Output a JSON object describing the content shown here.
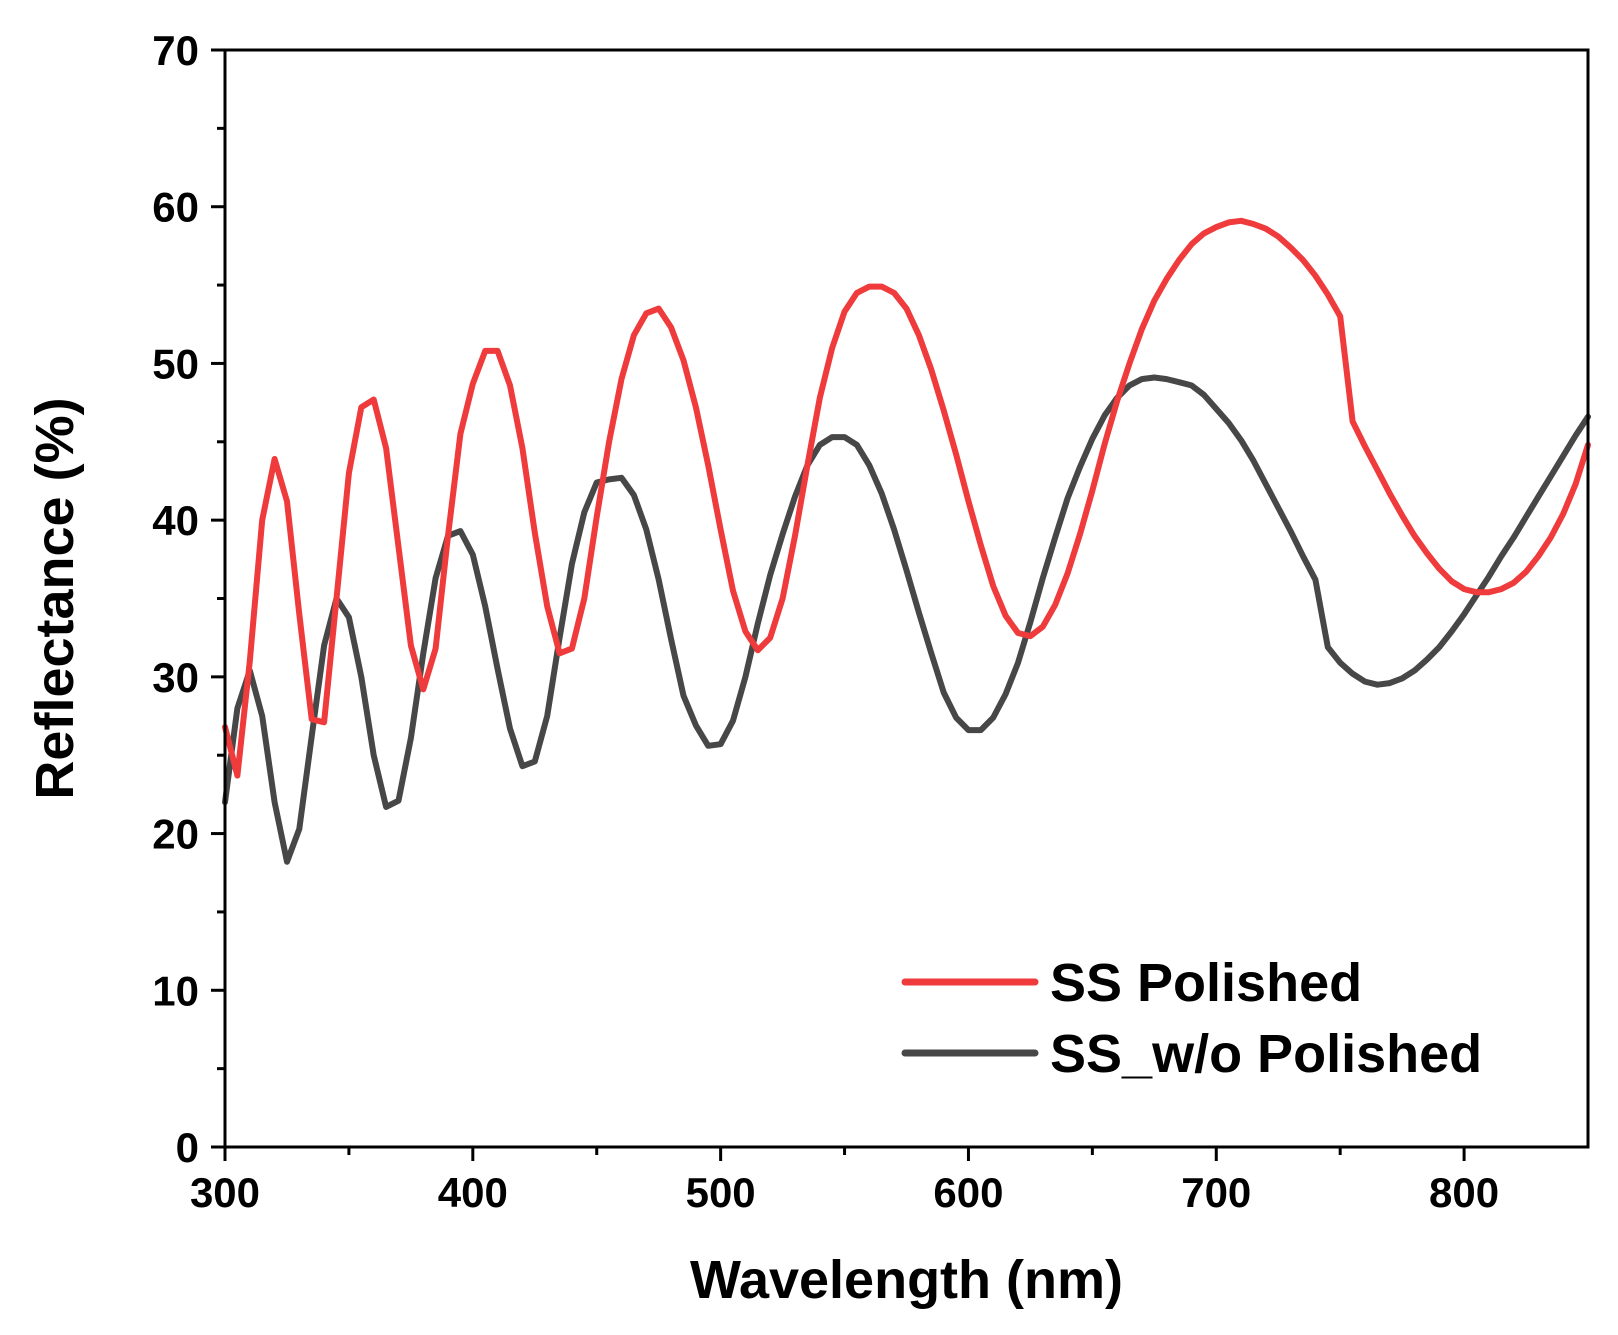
{
  "chart_data": {
    "type": "line",
    "title": "",
    "xlabel": "Wavelength (nm)",
    "ylabel": "Reflectance (%)",
    "xlim": [
      300,
      850
    ],
    "ylim": [
      0,
      70
    ],
    "x_ticks": [
      300,
      400,
      500,
      600,
      700,
      800
    ],
    "x_tick_labels": [
      "300",
      "400",
      "500",
      "600",
      "700",
      "800"
    ],
    "x_minor_ticks": [
      350,
      450,
      550,
      650,
      750
    ],
    "y_ticks": [
      0,
      10,
      20,
      30,
      40,
      50,
      60,
      70
    ],
    "y_tick_labels": [
      "0",
      "10",
      "20",
      "30",
      "40",
      "50",
      "60",
      "70"
    ],
    "y_minor_ticks": [
      5,
      15,
      25,
      35,
      45,
      55,
      65
    ],
    "grid": false,
    "legend_position": "bottom-right",
    "series": [
      {
        "name": "SS Polished",
        "color": "#ef3b3b",
        "x": [
          300,
          305,
          310,
          315,
          320,
          325,
          330,
          335,
          340,
          345,
          350,
          355,
          360,
          365,
          370,
          375,
          380,
          385,
          390,
          395,
          400,
          405,
          410,
          415,
          420,
          425,
          430,
          435,
          440,
          445,
          450,
          455,
          460,
          465,
          470,
          475,
          480,
          485,
          490,
          495,
          500,
          505,
          510,
          515,
          520,
          525,
          530,
          535,
          540,
          545,
          550,
          555,
          560,
          565,
          570,
          575,
          580,
          585,
          590,
          595,
          600,
          605,
          610,
          615,
          620,
          625,
          630,
          635,
          640,
          645,
          650,
          655,
          660,
          665,
          670,
          675,
          680,
          685,
          690,
          695,
          700,
          705,
          710,
          715,
          720,
          725,
          730,
          735,
          740,
          745,
          750,
          755,
          760,
          765,
          770,
          775,
          780,
          785,
          790,
          795,
          800,
          805,
          810,
          815,
          820,
          825,
          830,
          835,
          840,
          845,
          850
        ],
        "values": [
          26.8,
          23.7,
          31.0,
          40.0,
          43.9,
          41.2,
          34.0,
          27.3,
          27.1,
          35.0,
          43.0,
          47.2,
          47.7,
          44.6,
          38.3,
          32.0,
          29.2,
          31.8,
          39.0,
          45.5,
          48.7,
          50.8,
          50.8,
          48.6,
          44.6,
          39.2,
          34.5,
          31.5,
          31.8,
          35.0,
          40.2,
          45.0,
          49.0,
          51.8,
          53.2,
          53.5,
          52.3,
          50.2,
          47.2,
          43.5,
          39.4,
          35.5,
          32.9,
          31.7,
          32.5,
          35.0,
          39.0,
          43.5,
          47.8,
          51.0,
          53.3,
          54.5,
          54.9,
          54.9,
          54.5,
          53.5,
          51.8,
          49.6,
          47.0,
          44.2,
          41.2,
          38.4,
          35.8,
          33.9,
          32.8,
          32.6,
          33.2,
          34.6,
          36.6,
          39.1,
          41.9,
          44.9,
          47.6,
          50.0,
          52.2,
          54.0,
          55.4,
          56.6,
          57.6,
          58.3,
          58.7,
          59.0,
          59.1,
          58.9,
          58.6,
          58.1,
          57.4,
          56.6,
          55.6,
          54.4,
          53.0,
          46.3,
          44.7,
          43.2,
          41.7,
          40.3,
          39.0,
          37.9,
          36.9,
          36.1,
          35.6,
          35.4,
          35.4,
          35.6,
          36.0,
          36.7,
          37.7,
          38.9,
          40.4,
          42.3,
          44.8
        ]
      },
      {
        "name": "SS_w/o Polished",
        "color": "#474747",
        "x": [
          300,
          305,
          310,
          315,
          320,
          325,
          330,
          335,
          340,
          345,
          350,
          355,
          360,
          365,
          370,
          375,
          380,
          385,
          390,
          395,
          400,
          405,
          410,
          415,
          420,
          425,
          430,
          435,
          440,
          445,
          450,
          455,
          460,
          465,
          470,
          475,
          480,
          485,
          490,
          495,
          500,
          505,
          510,
          515,
          520,
          525,
          530,
          535,
          540,
          545,
          550,
          555,
          560,
          565,
          570,
          575,
          580,
          585,
          590,
          595,
          600,
          605,
          610,
          615,
          620,
          625,
          630,
          635,
          640,
          645,
          650,
          655,
          660,
          665,
          670,
          675,
          680,
          685,
          690,
          695,
          700,
          705,
          710,
          715,
          720,
          725,
          730,
          735,
          740,
          745,
          750,
          755,
          760,
          765,
          770,
          775,
          780,
          785,
          790,
          795,
          800,
          805,
          810,
          815,
          820,
          825,
          830,
          835,
          840,
          845,
          850
        ],
        "values": [
          22.0,
          28.0,
          30.4,
          27.5,
          22.0,
          18.2,
          20.3,
          26.2,
          32.0,
          35.0,
          33.8,
          30.0,
          25.0,
          21.7,
          22.1,
          26.1,
          31.5,
          36.3,
          39.0,
          39.3,
          37.8,
          34.5,
          30.5,
          26.7,
          24.3,
          24.6,
          27.5,
          32.5,
          37.2,
          40.5,
          42.4,
          42.6,
          42.7,
          41.6,
          39.4,
          36.2,
          32.4,
          28.8,
          26.9,
          25.6,
          25.7,
          27.2,
          30.0,
          33.4,
          36.5,
          39.1,
          41.5,
          43.5,
          44.8,
          45.3,
          45.3,
          44.8,
          43.5,
          41.7,
          39.4,
          36.8,
          34.1,
          31.5,
          29.0,
          27.4,
          26.6,
          26.6,
          27.4,
          28.9,
          30.9,
          33.5,
          36.3,
          38.9,
          41.4,
          43.4,
          45.2,
          46.7,
          47.8,
          48.6,
          49.0,
          49.1,
          49.0,
          48.8,
          48.6,
          48.0,
          47.1,
          46.2,
          45.1,
          43.8,
          42.3,
          40.8,
          39.3,
          37.7,
          36.2,
          31.9,
          30.9,
          30.2,
          29.7,
          29.5,
          29.6,
          29.9,
          30.4,
          31.1,
          31.9,
          32.9,
          34.0,
          35.2,
          36.4,
          37.7,
          38.9,
          40.2,
          41.5,
          42.8,
          44.1,
          45.4,
          46.6
        ]
      }
    ]
  }
}
